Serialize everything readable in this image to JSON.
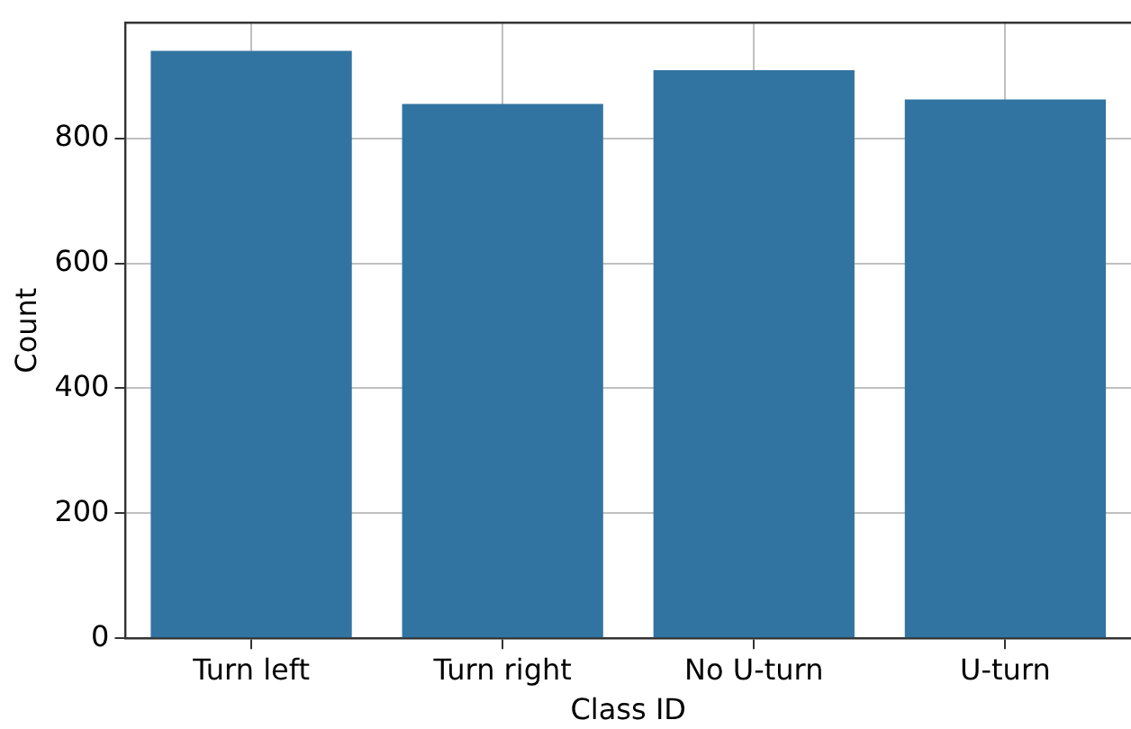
{
  "chart_data": {
    "type": "bar",
    "xlabel": "Class ID",
    "ylabel": "Count",
    "categories": [
      "Turn left",
      "Turn right",
      "No U-turn",
      "U-turn"
    ],
    "values": [
      940,
      855,
      909,
      862
    ],
    "color": "#3274a1",
    "ylim": [
      0,
      985
    ],
    "yticks": [
      0,
      200,
      400,
      600,
      800
    ],
    "grid": true,
    "legend": false
  }
}
